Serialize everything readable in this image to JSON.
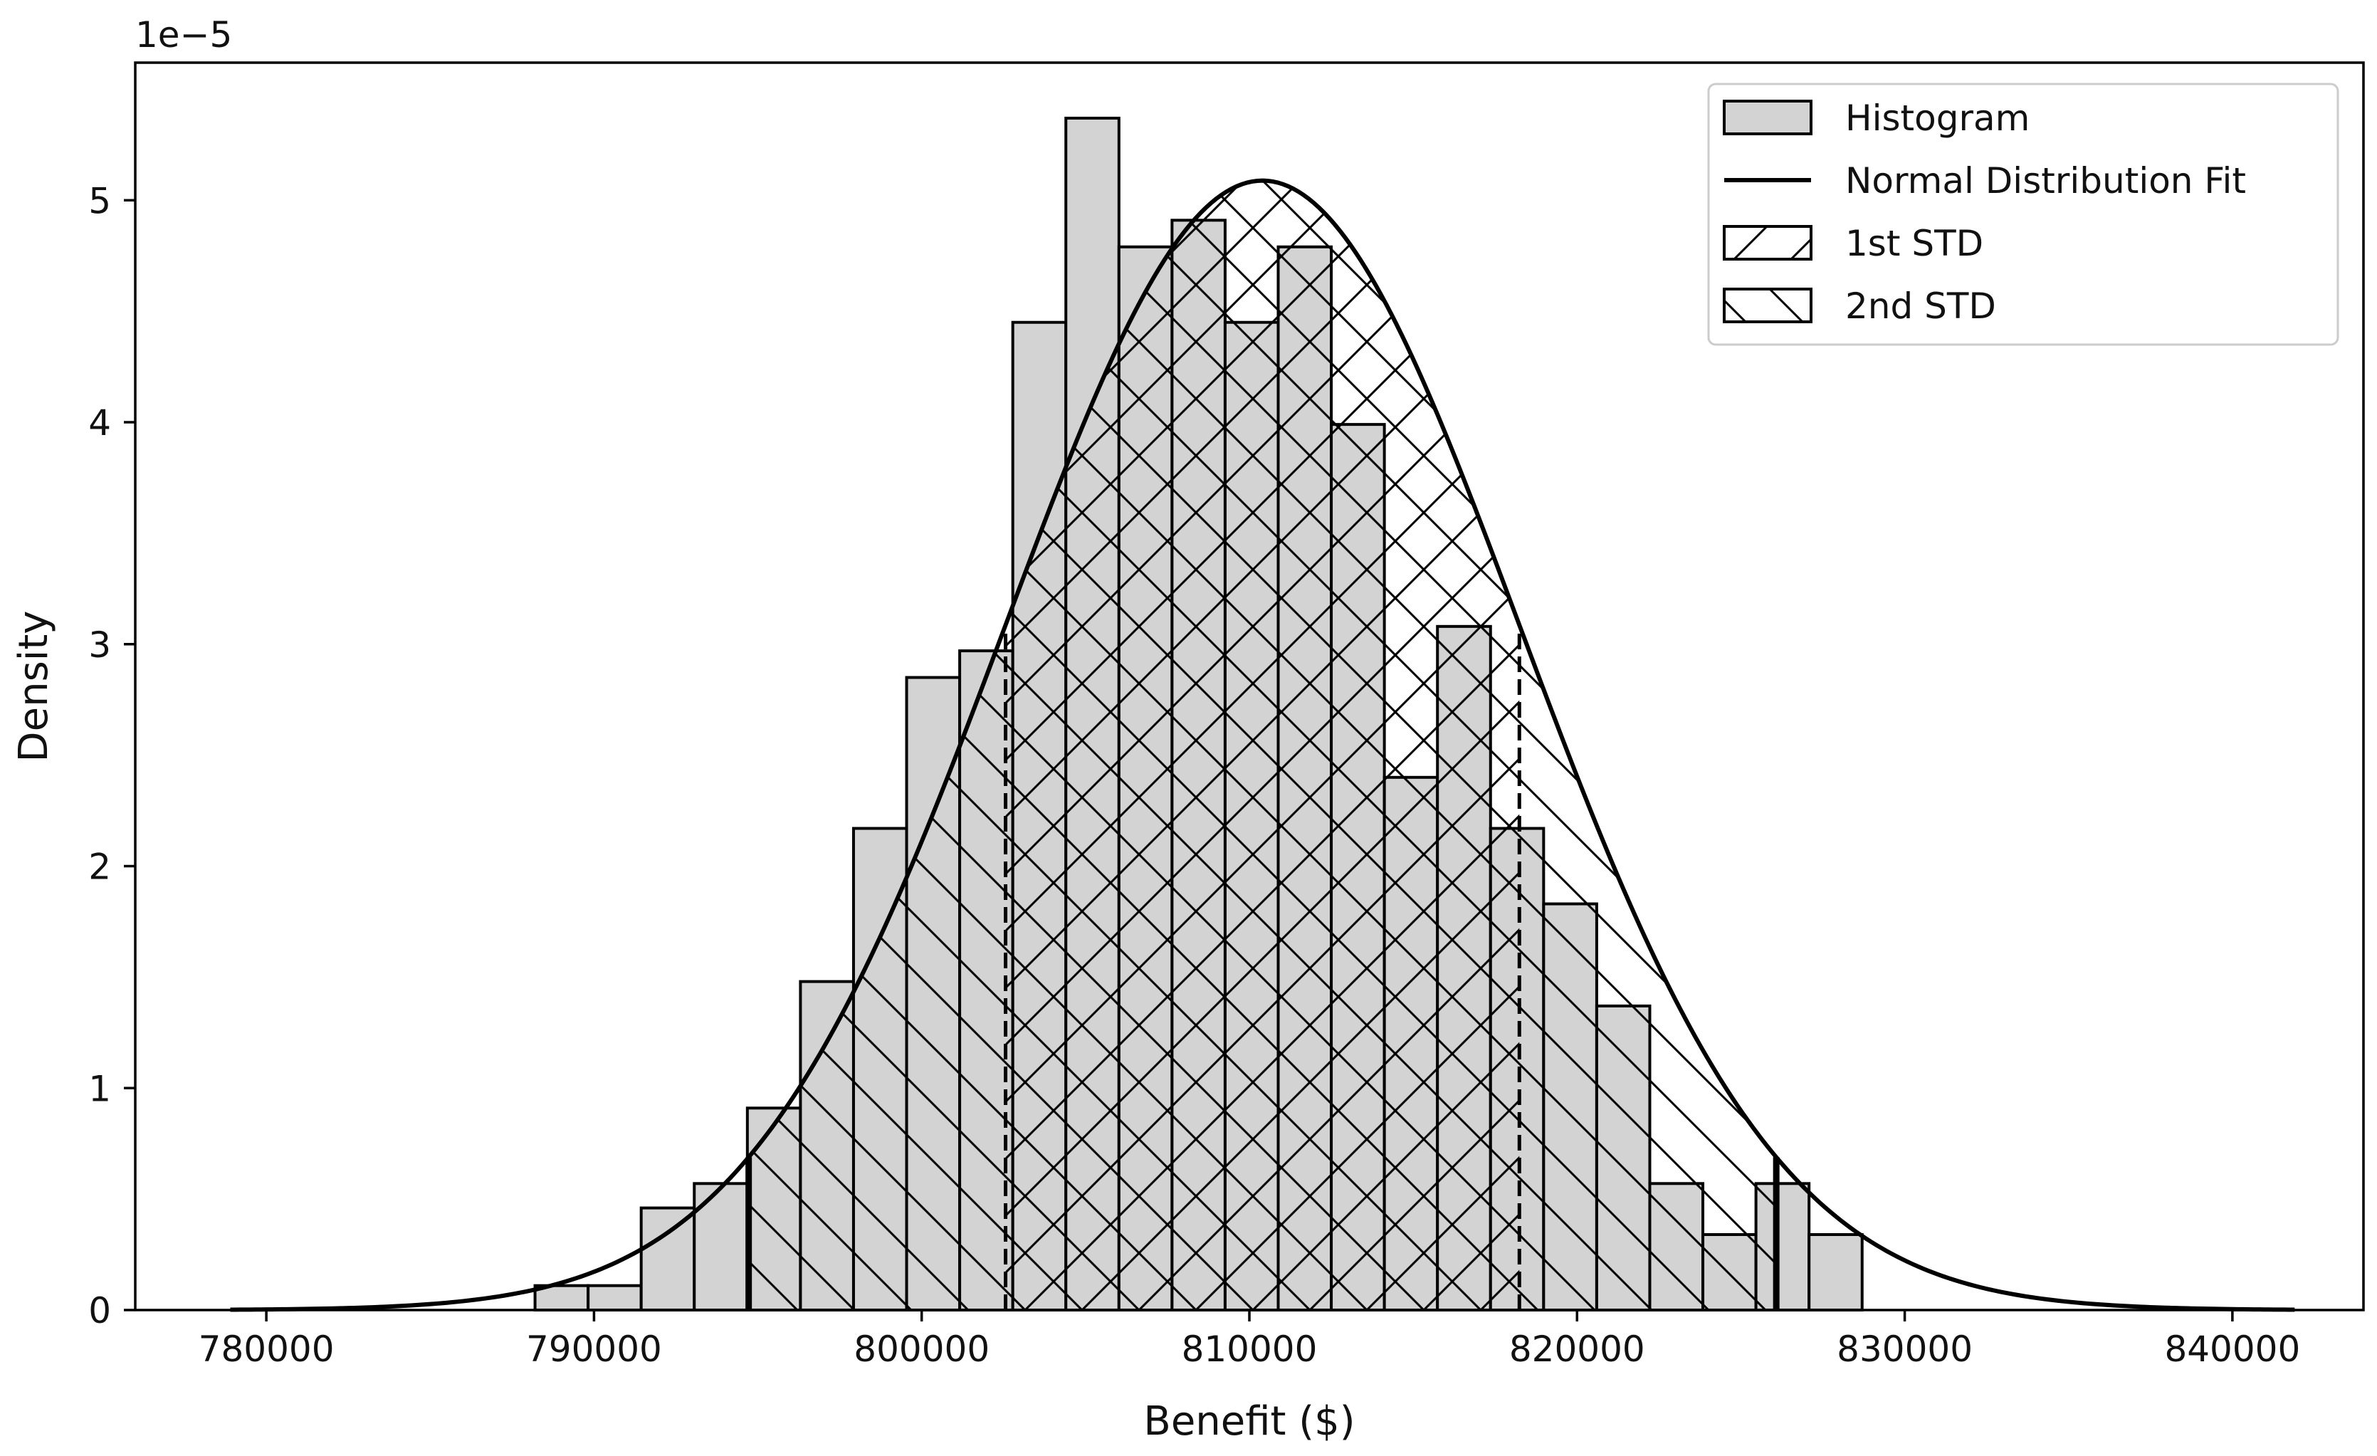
{
  "chart_data": {
    "type": "histogram",
    "title": "",
    "xlabel": "Benefit ($)",
    "ylabel": "Density",
    "y_scale_label": "1e−5",
    "xlim": [
      776000,
      844000
    ],
    "ylim": [
      0,
      5.62
    ],
    "x_ticks": [
      780000,
      790000,
      800000,
      810000,
      820000,
      830000,
      840000
    ],
    "x_tick_labels": [
      "780000",
      "790000",
      "800000",
      "810000",
      "820000",
      "830000",
      "840000"
    ],
    "y_ticks": [
      0,
      1,
      2,
      3,
      4,
      5
    ],
    "y_tick_labels": [
      "0",
      "1",
      "2",
      "3",
      "4",
      "5"
    ],
    "grid": false,
    "legend_position": "top-right",
    "legend": [
      {
        "key": "histogram",
        "label": "Histogram"
      },
      {
        "key": "fit",
        "label": "Normal Distribution Fit"
      },
      {
        "key": "std1",
        "label": "1st STD"
      },
      {
        "key": "std2",
        "label": "2nd STD"
      }
    ],
    "histogram": {
      "bin_start": 788200,
      "bin_width": 1620,
      "densities": [
        0.11,
        0.11,
        0.46,
        0.57,
        0.91,
        1.48,
        2.17,
        2.85,
        2.97,
        4.45,
        5.37,
        4.79,
        4.91,
        4.45,
        4.79,
        3.99,
        2.4,
        3.08,
        2.17,
        1.83,
        1.37,
        0.57,
        0.34,
        0.57,
        0.34
      ],
      "fill_color": "#d3d3d3",
      "edge_color": "#000000"
    },
    "normal_fit": {
      "mean": 810400,
      "std": 7840,
      "x_range": [
        778900,
        841900
      ],
      "color": "#000000"
    },
    "std_bands": {
      "first": [
        802560,
        818240
      ],
      "second": [
        794720,
        826080
      ]
    }
  }
}
